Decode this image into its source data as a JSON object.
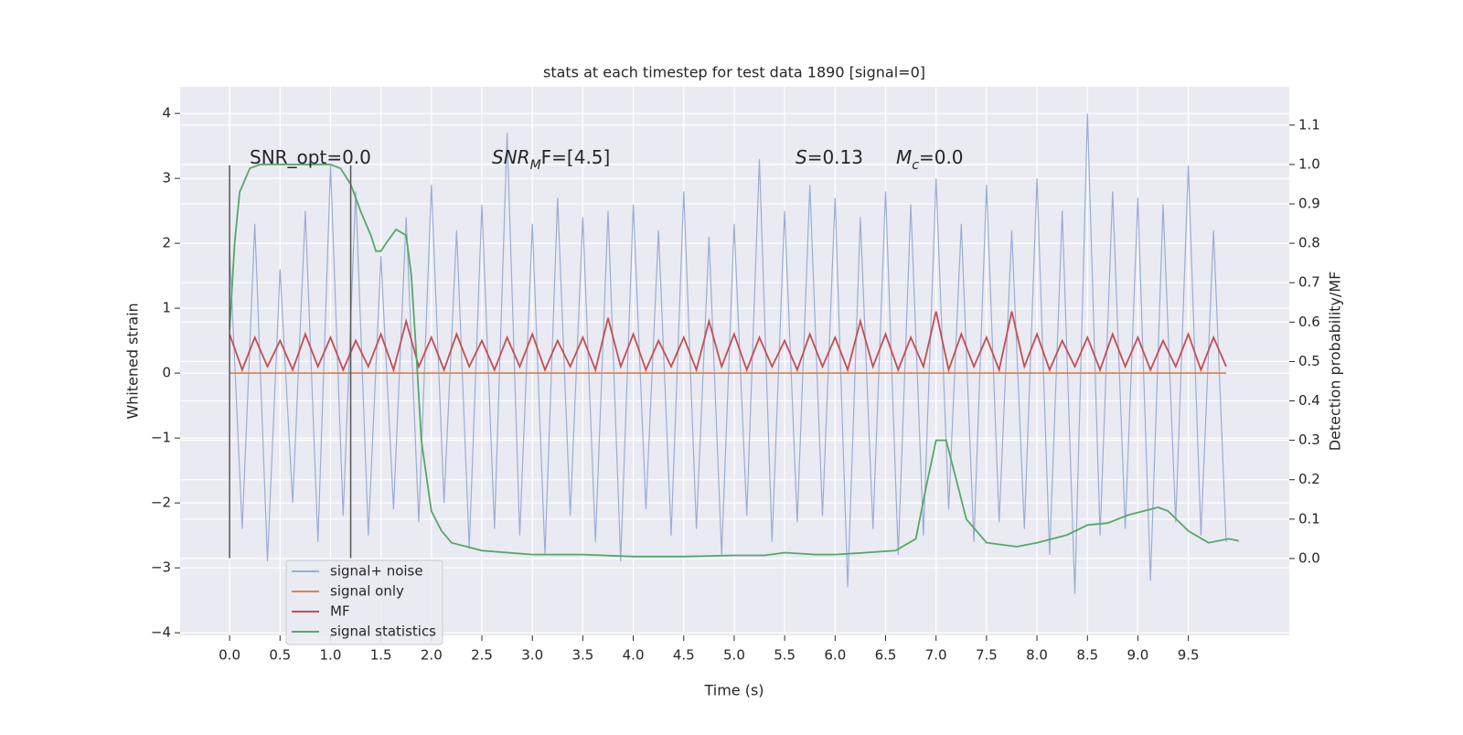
{
  "chart_data": {
    "type": "line",
    "title": "stats at each timestep for test data 1890 [signal=0]",
    "xlabel": "Time (s)",
    "ylabel": "Whitened strain",
    "y2label": "Detection probability/MF",
    "x": [
      0,
      0.125,
      0.25,
      0.375,
      0.5,
      0.625,
      0.75,
      0.875,
      1,
      1.125,
      1.25,
      1.375,
      1.5,
      1.625,
      1.75,
      1.875,
      2,
      2.125,
      2.25,
      2.375,
      2.5,
      2.625,
      2.75,
      2.875,
      3,
      3.125,
      3.25,
      3.375,
      3.5,
      3.625,
      3.75,
      3.875,
      4,
      4.125,
      4.25,
      4.375,
      4.5,
      4.625,
      4.75,
      4.875,
      5,
      5.125,
      5.25,
      5.375,
      5.5,
      5.625,
      5.75,
      5.875,
      6,
      6.125,
      6.25,
      6.375,
      6.5,
      6.625,
      6.75,
      6.875,
      7,
      7.125,
      7.25,
      7.375,
      7.5,
      7.625,
      7.75,
      7.875,
      8,
      8.125,
      8.25,
      8.375,
      8.5,
      8.625,
      8.75,
      8.875,
      9,
      9.125,
      9.25,
      9.375,
      9.5,
      9.625,
      9.75,
      9.875
    ],
    "series": [
      {
        "name": "signal+ noise",
        "color": "#9aaed3",
        "values": [
          1.9,
          -2.4,
          2.3,
          -2.9,
          1.6,
          -2.0,
          2.5,
          -2.6,
          3.2,
          -2.2,
          2.8,
          -2.5,
          1.8,
          -2.1,
          2.4,
          -2.3,
          2.9,
          -2.0,
          2.2,
          -2.7,
          2.6,
          -2.4,
          3.7,
          -2.5,
          2.3,
          -2.8,
          2.7,
          -2.2,
          2.4,
          -2.6,
          2.5,
          -2.9,
          2.6,
          -2.1,
          2.2,
          -2.5,
          2.8,
          -2.4,
          2.1,
          -2.8,
          2.3,
          -2.2,
          3.3,
          -2.6,
          2.5,
          -2.3,
          2.9,
          -2.2,
          2.7,
          -3.3,
          2.4,
          -2.4,
          2.8,
          -2.8,
          2.6,
          -2.5,
          3.0,
          -2.1,
          2.3,
          -2.6,
          2.9,
          -2.3,
          2.2,
          -2.4,
          3.0,
          -2.8,
          2.5,
          -3.4,
          4.0,
          -2.5,
          2.8,
          -2.4,
          2.7,
          -3.2,
          2.6,
          -2.3,
          3.2,
          -2.5,
          2.2,
          -2.6
        ]
      },
      {
        "name": "signal only",
        "color": "#dd8452",
        "values": [
          0,
          0,
          0,
          0,
          0,
          0,
          0,
          0,
          0,
          0,
          0,
          0,
          0,
          0,
          0,
          0,
          0,
          0,
          0,
          0,
          0,
          0,
          0,
          0,
          0,
          0,
          0,
          0,
          0,
          0,
          0,
          0,
          0,
          0,
          0,
          0,
          0,
          0,
          0,
          0,
          0,
          0,
          0,
          0,
          0,
          0,
          0,
          0,
          0,
          0,
          0,
          0,
          0,
          0,
          0,
          0,
          0,
          0,
          0,
          0,
          0,
          0,
          0,
          0,
          0,
          0,
          0,
          0,
          0,
          0,
          0,
          0,
          0,
          0,
          0,
          0,
          0,
          0,
          0,
          0
        ]
      },
      {
        "name": "MF",
        "color": "#c44e52",
        "values": [
          0.6,
          0.05,
          0.55,
          0.1,
          0.5,
          0.05,
          0.6,
          0.1,
          0.55,
          0.05,
          0.5,
          0.1,
          0.6,
          0.05,
          0.8,
          0.1,
          0.55,
          0.05,
          0.6,
          0.1,
          0.5,
          0.05,
          0.55,
          0.1,
          0.6,
          0.05,
          0.5,
          0.1,
          0.55,
          0.05,
          0.85,
          0.1,
          0.6,
          0.05,
          0.5,
          0.1,
          0.55,
          0.05,
          0.8,
          0.1,
          0.6,
          0.05,
          0.55,
          0.1,
          0.5,
          0.05,
          0.6,
          0.1,
          0.55,
          0.05,
          0.8,
          0.1,
          0.6,
          0.05,
          0.55,
          0.1,
          0.95,
          0.05,
          0.6,
          0.1,
          0.55,
          0.05,
          0.95,
          0.1,
          0.6,
          0.05,
          0.5,
          0.1,
          0.55,
          0.05,
          0.6,
          0.1,
          0.55,
          0.05,
          0.5,
          0.1,
          0.6,
          0.05,
          0.55,
          0.1
        ]
      },
      {
        "name": "signal statistics",
        "color": "#55a868",
        "axis": "y2",
        "x": [
          0,
          0.05,
          0.1,
          0.2,
          0.3,
          0.5,
          0.8,
          1.0,
          1.1,
          1.2,
          1.3,
          1.4,
          1.45,
          1.5,
          1.55,
          1.65,
          1.75,
          1.8,
          1.85,
          1.9,
          2.0,
          2.1,
          2.2,
          2.5,
          3.0,
          3.5,
          4.0,
          4.5,
          5.0,
          5.3,
          5.5,
          5.8,
          6.0,
          6.3,
          6.6,
          6.8,
          6.9,
          7.0,
          7.1,
          7.2,
          7.3,
          7.5,
          7.8,
          8.0,
          8.3,
          8.5,
          8.7,
          8.9,
          9.2,
          9.3,
          9.5,
          9.7,
          9.9,
          10.0
        ],
        "values": [
          0.58,
          0.8,
          0.93,
          0.99,
          1.0,
          1.0,
          1.0,
          1.0,
          0.99,
          0.95,
          0.88,
          0.82,
          0.78,
          0.78,
          0.8,
          0.835,
          0.82,
          0.72,
          0.52,
          0.3,
          0.12,
          0.07,
          0.04,
          0.02,
          0.01,
          0.01,
          0.005,
          0.005,
          0.008,
          0.008,
          0.015,
          0.01,
          0.01,
          0.015,
          0.02,
          0.05,
          0.18,
          0.3,
          0.3,
          0.2,
          0.1,
          0.04,
          0.03,
          0.04,
          0.06,
          0.085,
          0.09,
          0.11,
          0.13,
          0.12,
          0.07,
          0.04,
          0.05,
          0.045
        ]
      }
    ],
    "vlines": [
      0,
      1.2
    ],
    "vline_span": [
      -2.85,
      3.2
    ],
    "vline_color": "#555555",
    "annotations": [
      {
        "text": "SNR_opt=0.0"
      },
      {
        "base": "SNR",
        "sub": "M",
        "rest": "F=[4.5]"
      },
      {
        "base": "S",
        "rest": "=0.13"
      },
      {
        "base": "M",
        "sub": "c",
        "rest": "=0.0"
      }
    ],
    "xlim": [
      -0.49,
      10.5
    ],
    "ylim": [
      -4.04,
      4.41
    ],
    "y2lim": [
      -0.195,
      1.197
    ],
    "xticks": [
      {
        "value": 0,
        "label": "0.0"
      },
      0.5,
      {
        "value": 1,
        "label": "1.0"
      },
      1.5,
      {
        "value": 2,
        "label": "2.0"
      },
      2.5,
      {
        "value": 3,
        "label": "3.0"
      },
      3.5,
      {
        "value": 4,
        "label": "4.0"
      },
      4.5,
      {
        "value": 5,
        "label": "5.0"
      },
      5.5,
      {
        "value": 6,
        "label": "6.0"
      },
      6.5,
      {
        "value": 7,
        "label": "7.0"
      },
      7.5,
      {
        "value": 8,
        "label": "8.0"
      },
      8.5,
      {
        "value": 9,
        "label": "9.0"
      },
      9.5
    ],
    "yticks": [
      {
        "value": -4,
        "label": "−4"
      },
      {
        "value": -3,
        "label": "−3"
      },
      {
        "value": -2,
        "label": "−2"
      },
      {
        "value": -1,
        "label": "−1"
      },
      0,
      1,
      2,
      3,
      4
    ],
    "y2ticks": [
      {
        "value": 0,
        "label": "0.0"
      },
      0.1,
      0.2,
      0.3,
      0.4,
      0.5,
      0.6,
      0.7,
      0.8,
      0.9,
      {
        "value": 1,
        "label": "1.0"
      },
      1.1
    ],
    "grid": true,
    "legend": "lower left"
  }
}
